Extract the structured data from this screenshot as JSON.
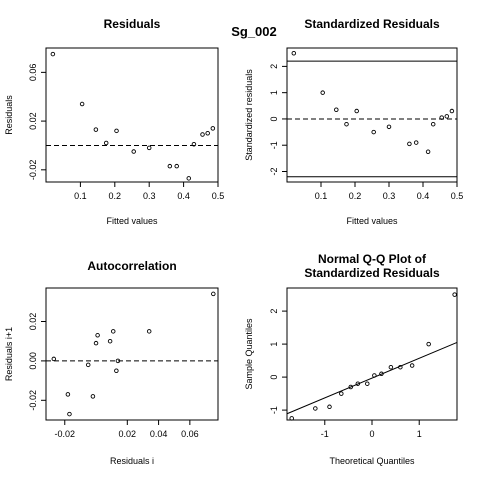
{
  "figure": {
    "title": "Sg_002"
  },
  "chart_data": [
    {
      "type": "scatter",
      "title": "Residuals",
      "xlabel": "Fitted values",
      "ylabel": "Residuals",
      "xlim": [
        0.0,
        0.5
      ],
      "ylim": [
        -0.03,
        0.08
      ],
      "xticks": [
        0.1,
        0.2,
        0.3,
        0.4,
        0.5
      ],
      "xtick_labels": [
        "0.1",
        "0.2",
        "0.3",
        "0.4",
        "0.5"
      ],
      "yticks": [
        -0.02,
        0.02,
        0.06
      ],
      "ytick_labels": [
        "-0.02",
        "0.02",
        "0.06"
      ],
      "hlines": [
        {
          "y": 0.0,
          "style": "dashed"
        }
      ],
      "points": [
        {
          "x": 0.02,
          "y": 0.075
        },
        {
          "x": 0.105,
          "y": 0.034
        },
        {
          "x": 0.145,
          "y": 0.013
        },
        {
          "x": 0.175,
          "y": 0.002
        },
        {
          "x": 0.205,
          "y": 0.012
        },
        {
          "x": 0.255,
          "y": -0.005
        },
        {
          "x": 0.3,
          "y": -0.002
        },
        {
          "x": 0.36,
          "y": -0.017
        },
        {
          "x": 0.38,
          "y": -0.017
        },
        {
          "x": 0.415,
          "y": -0.027
        },
        {
          "x": 0.43,
          "y": 0.001
        },
        {
          "x": 0.455,
          "y": 0.009
        },
        {
          "x": 0.47,
          "y": 0.01
        },
        {
          "x": 0.485,
          "y": 0.014
        }
      ]
    },
    {
      "type": "scatter",
      "title": "Standardized Residuals",
      "xlabel": "Fitted values",
      "ylabel": "Standardized residuals",
      "xlim": [
        0.0,
        0.5
      ],
      "ylim": [
        -2.4,
        2.7
      ],
      "xticks": [
        0.1,
        0.2,
        0.3,
        0.4,
        0.5
      ],
      "xtick_labels": [
        "0.1",
        "0.2",
        "0.3",
        "0.4",
        "0.5"
      ],
      "yticks": [
        -2,
        -1,
        0,
        1,
        2
      ],
      "ytick_labels": [
        "-2",
        "-1",
        "0",
        "1",
        "2"
      ],
      "hlines": [
        {
          "y": 0.0,
          "style": "dashed"
        },
        {
          "y": 2.2,
          "style": "solid"
        },
        {
          "y": -2.2,
          "style": "solid"
        }
      ],
      "points": [
        {
          "x": 0.02,
          "y": 2.5
        },
        {
          "x": 0.105,
          "y": 1.0
        },
        {
          "x": 0.145,
          "y": 0.35
        },
        {
          "x": 0.175,
          "y": -0.2
        },
        {
          "x": 0.205,
          "y": 0.3
        },
        {
          "x": 0.255,
          "y": -0.5
        },
        {
          "x": 0.3,
          "y": -0.3
        },
        {
          "x": 0.36,
          "y": -0.95
        },
        {
          "x": 0.38,
          "y": -0.9
        },
        {
          "x": 0.415,
          "y": -1.25
        },
        {
          "x": 0.43,
          "y": -0.2
        },
        {
          "x": 0.455,
          "y": 0.05
        },
        {
          "x": 0.47,
          "y": 0.1
        },
        {
          "x": 0.485,
          "y": 0.3
        }
      ]
    },
    {
      "type": "scatter",
      "title": "Autocorrelation",
      "xlabel": "Residuals i",
      "ylabel": "Residuals i+1",
      "xlim": [
        -0.032,
        0.078
      ],
      "ylim": [
        -0.03,
        0.037
      ],
      "xticks": [
        -0.02,
        0.02,
        0.04,
        0.06
      ],
      "xtick_labels": [
        "-0.02",
        "0.02",
        "0.04",
        "0.06"
      ],
      "yticks": [
        -0.02,
        0.0,
        0.02
      ],
      "ytick_labels": [
        "-0.02",
        "0.00",
        "0.02"
      ],
      "hlines": [
        {
          "y": 0.0,
          "style": "dashed"
        }
      ],
      "points": [
        {
          "x": -0.027,
          "y": 0.001
        },
        {
          "x": -0.018,
          "y": -0.017
        },
        {
          "x": -0.017,
          "y": -0.027
        },
        {
          "x": -0.005,
          "y": -0.002
        },
        {
          "x": -0.002,
          "y": -0.018
        },
        {
          "x": 0.0,
          "y": 0.009
        },
        {
          "x": 0.001,
          "y": 0.013
        },
        {
          "x": 0.009,
          "y": 0.01
        },
        {
          "x": 0.011,
          "y": 0.015
        },
        {
          "x": 0.013,
          "y": -0.005
        },
        {
          "x": 0.014,
          "y": 0.0
        },
        {
          "x": 0.034,
          "y": 0.015
        },
        {
          "x": 0.075,
          "y": 0.034
        }
      ]
    },
    {
      "type": "scatter",
      "title": [
        "Normal Q-Q Plot of",
        "Standardized Residuals"
      ],
      "xlabel": "Theoretical Quantiles",
      "ylabel": "Sample Quantiles",
      "xlim": [
        -1.8,
        1.8
      ],
      "ylim": [
        -1.3,
        2.7
      ],
      "xticks": [
        -1,
        0,
        1
      ],
      "xtick_labels": [
        "-1",
        "0",
        "1"
      ],
      "yticks": [
        -1,
        0,
        1,
        2
      ],
      "ytick_labels": [
        "-1",
        "0",
        "1",
        "2"
      ],
      "reference_line": {
        "slope": 0.6,
        "intercept": -0.03
      },
      "points": [
        {
          "x": -1.7,
          "y": -1.25
        },
        {
          "x": -1.2,
          "y": -0.95
        },
        {
          "x": -0.9,
          "y": -0.9
        },
        {
          "x": -0.65,
          "y": -0.5
        },
        {
          "x": -0.45,
          "y": -0.3
        },
        {
          "x": -0.3,
          "y": -0.2
        },
        {
          "x": -0.1,
          "y": -0.2
        },
        {
          "x": 0.05,
          "y": 0.05
        },
        {
          "x": 0.2,
          "y": 0.1
        },
        {
          "x": 0.4,
          "y": 0.3
        },
        {
          "x": 0.6,
          "y": 0.3
        },
        {
          "x": 0.85,
          "y": 0.35
        },
        {
          "x": 1.2,
          "y": 1.0
        },
        {
          "x": 1.75,
          "y": 2.5
        }
      ]
    }
  ]
}
